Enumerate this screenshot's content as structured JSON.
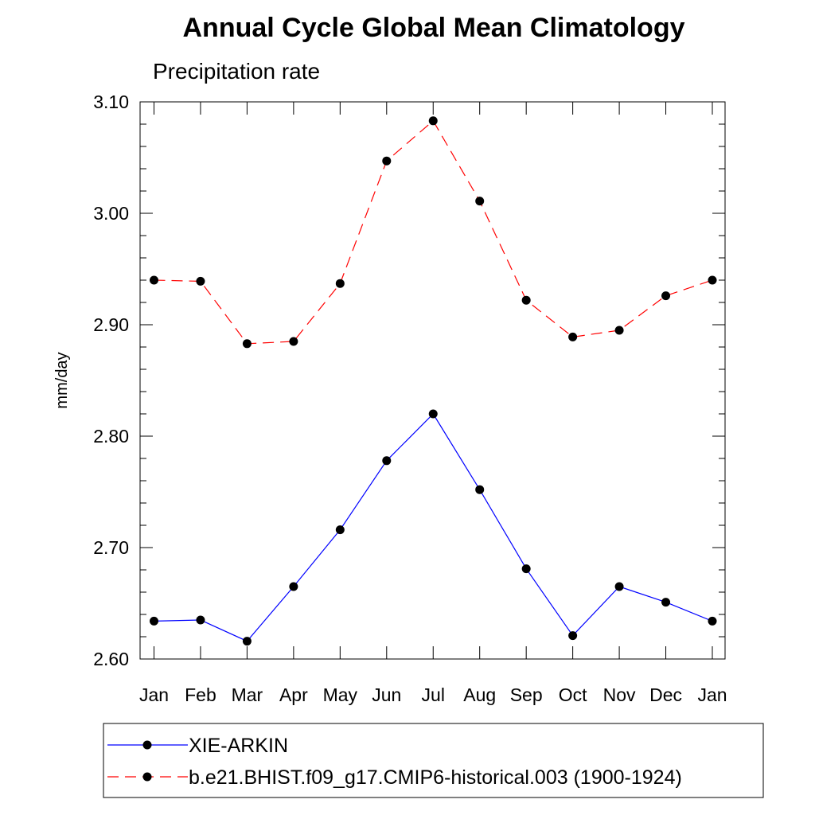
{
  "chart_data": {
    "type": "line",
    "title": "Annual Cycle Global Mean Climatology",
    "subtitle": "Precipitation rate",
    "xlabel": "",
    "ylabel": "mm/day",
    "categories": [
      "Jan",
      "Feb",
      "Mar",
      "Apr",
      "May",
      "Jun",
      "Jul",
      "Aug",
      "Sep",
      "Oct",
      "Nov",
      "Dec",
      "Jan"
    ],
    "ylim": [
      2.6,
      3.1
    ],
    "yticks": [
      "2.60",
      "2.70",
      "2.80",
      "2.90",
      "3.00",
      "3.10"
    ],
    "y_minor_step": 0.02,
    "series": [
      {
        "name": "XIE-ARKIN",
        "color": "#0000ff",
        "dash": "solid",
        "marker": "circle",
        "values": [
          2.634,
          2.635,
          2.616,
          2.665,
          2.716,
          2.778,
          2.82,
          2.752,
          2.681,
          2.621,
          2.665,
          2.651,
          2.634
        ]
      },
      {
        "name": "b.e21.BHIST.f09_g17.CMIP6-historical.003 (1900-1924)",
        "color": "#ff0000",
        "dash": "dashed",
        "marker": "circle",
        "values": [
          2.94,
          2.939,
          2.883,
          2.885,
          2.937,
          3.047,
          3.083,
          3.011,
          2.922,
          2.889,
          2.895,
          2.926,
          2.94
        ]
      }
    ],
    "legend": {
      "position": "bottom"
    }
  }
}
